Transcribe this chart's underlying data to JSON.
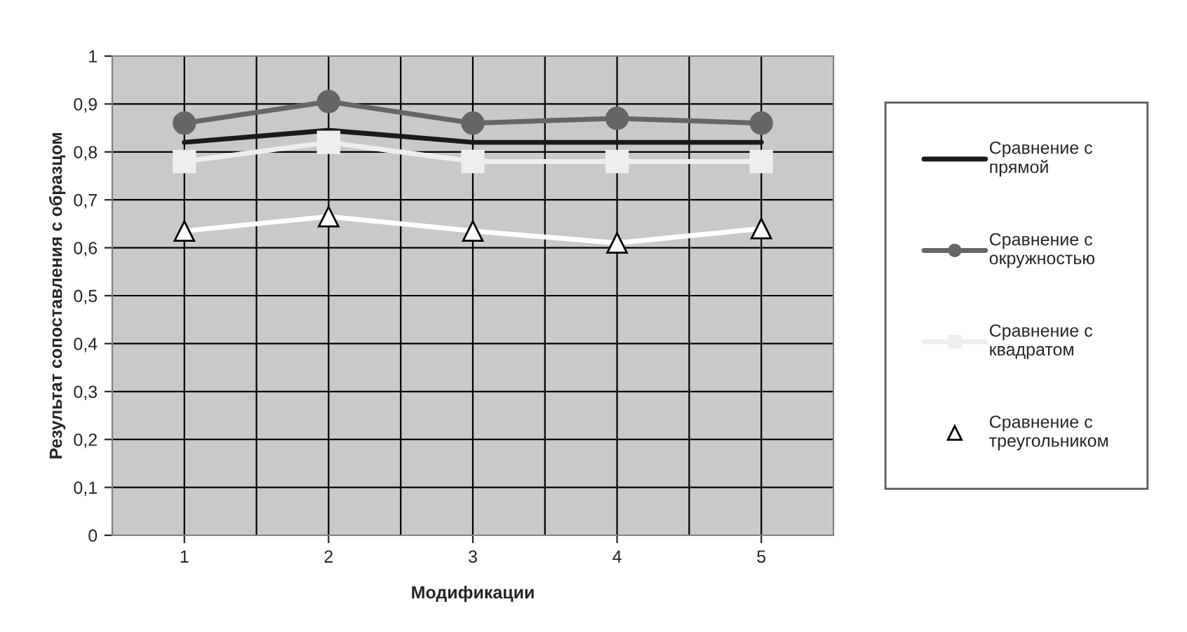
{
  "chart_data": {
    "type": "line",
    "xlabel": "Модификации",
    "ylabel": "Результат сопоставления с образцом",
    "categories": [
      "1",
      "2",
      "3",
      "4",
      "5"
    ],
    "series": [
      {
        "name": "Сравнение с прямой",
        "color": "#1a1a1a",
        "marker": "none",
        "values": [
          0.82,
          0.845,
          0.82,
          0.82,
          0.82
        ]
      },
      {
        "name": "Сравнение с окружностью",
        "color": "#666666",
        "marker": "circle",
        "values": [
          0.86,
          0.905,
          0.86,
          0.87,
          0.86
        ]
      },
      {
        "name": "Сравнение с квадратом",
        "color": "#eeeeee",
        "marker": "square",
        "values": [
          0.78,
          0.82,
          0.78,
          0.78,
          0.78
        ]
      },
      {
        "name": "Сравнение с треугольником",
        "color": "#ffffff",
        "marker": "triangle",
        "values": [
          0.635,
          0.665,
          0.635,
          0.61,
          0.64
        ]
      }
    ],
    "ylim": [
      0,
      1
    ],
    "yticks": [
      {
        "value": 0,
        "label": "0"
      },
      {
        "value": 0.1,
        "label": "0,1"
      },
      {
        "value": 0.2,
        "label": "0,2"
      },
      {
        "value": 0.3,
        "label": "0,3"
      },
      {
        "value": 0.4,
        "label": "0,4"
      },
      {
        "value": 0.5,
        "label": "0,5"
      },
      {
        "value": 0.6,
        "label": "0,6"
      },
      {
        "value": 0.7,
        "label": "0,7"
      },
      {
        "value": 0.8,
        "label": "0,8"
      },
      {
        "value": 0.9,
        "label": "0,9"
      },
      {
        "value": 1,
        "label": "1"
      }
    ],
    "grid": true,
    "legend": "right",
    "line_style": "solid"
  }
}
